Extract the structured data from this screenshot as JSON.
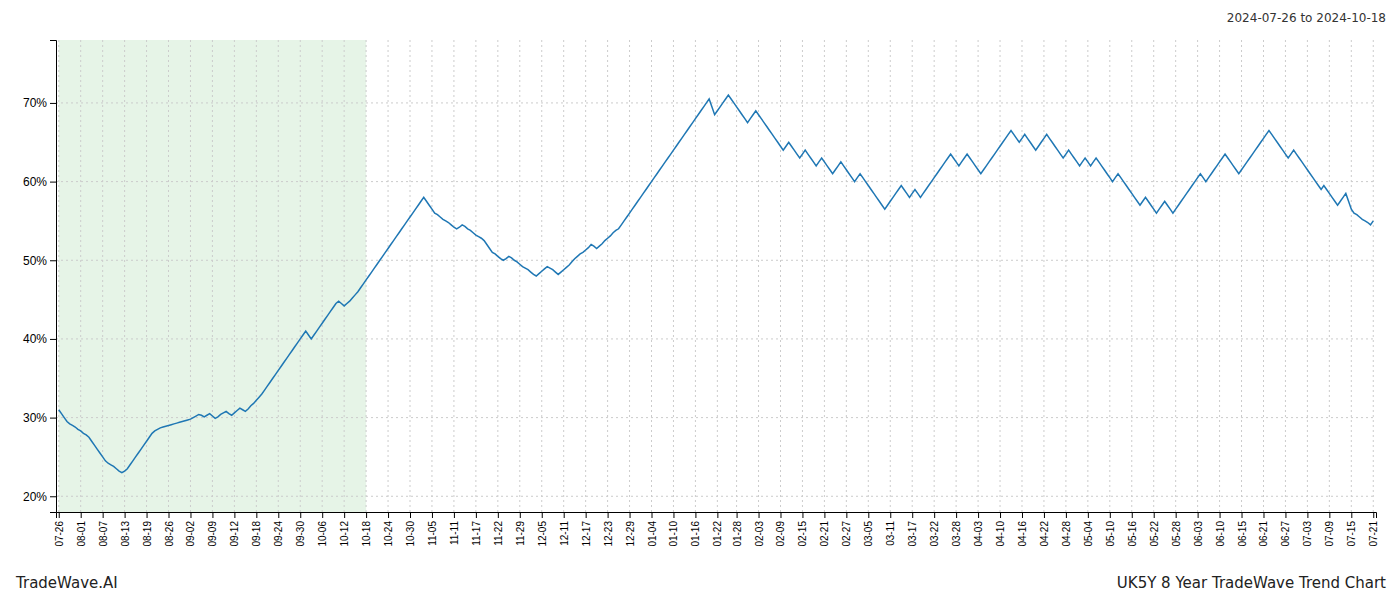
{
  "chart_data": {
    "type": "line",
    "annotations": [
      "2024-07-26 to 2024-10-18",
      "TradeWave.AI",
      "UK5Y 8 Year TradeWave Trend Chart"
    ],
    "categories": [
      "07-26",
      null,
      null,
      null,
      null,
      null,
      null,
      null,
      "08-01",
      null,
      null,
      null,
      null,
      null,
      null,
      null,
      "08-07",
      null,
      null,
      null,
      null,
      null,
      null,
      null,
      "08-13",
      null,
      null,
      null,
      null,
      null,
      null,
      null,
      "08-19",
      null,
      null,
      null,
      null,
      null,
      null,
      null,
      "08-26",
      null,
      null,
      null,
      null,
      null,
      null,
      null,
      "09-02",
      null,
      null,
      null,
      null,
      null,
      null,
      null,
      "09-09",
      null,
      null,
      null,
      null,
      null,
      null,
      null,
      "09-12",
      null,
      null,
      null,
      null,
      null,
      null,
      null,
      "09-18",
      null,
      null,
      null,
      null,
      null,
      null,
      null,
      "09-24",
      null,
      null,
      null,
      null,
      null,
      null,
      null,
      "09-30",
      null,
      null,
      null,
      null,
      null,
      null,
      null,
      "10-06",
      null,
      null,
      null,
      null,
      null,
      null,
      null,
      "10-12",
      null,
      null,
      null,
      null,
      null,
      null,
      null,
      "10-18",
      null,
      null,
      null,
      null,
      null,
      null,
      null,
      "10-24",
      null,
      null,
      null,
      null,
      null,
      null,
      null,
      "10-30",
      null,
      null,
      null,
      null,
      null,
      null,
      null,
      "11-05",
      null,
      null,
      null,
      null,
      null,
      null,
      null,
      "11-11",
      null,
      null,
      null,
      null,
      null,
      null,
      null,
      "11-17",
      null,
      null,
      null,
      null,
      null,
      null,
      null,
      "11-22",
      null,
      null,
      null,
      null,
      null,
      null,
      null,
      "11-29",
      null,
      null,
      null,
      null,
      null,
      null,
      null,
      "12-05",
      null,
      null,
      null,
      null,
      null,
      null,
      null,
      "12-11",
      null,
      null,
      null,
      null,
      null,
      null,
      null,
      "12-17",
      null,
      null,
      null,
      null,
      null,
      null,
      null,
      "12-23",
      null,
      null,
      null,
      null,
      null,
      null,
      null,
      "12-29",
      null,
      null,
      null,
      null,
      null,
      null,
      null,
      "01-04",
      null,
      null,
      null,
      null,
      null,
      null,
      null,
      "01-10",
      null,
      null,
      null,
      null,
      null,
      null,
      null,
      "01-16",
      null,
      null,
      null,
      null,
      null,
      null,
      null,
      "01-22",
      null,
      null,
      null,
      null,
      null,
      null,
      "01-28",
      null,
      null,
      null,
      null,
      null,
      null,
      null,
      "02-03",
      null,
      null,
      null,
      null,
      null,
      null,
      null,
      "02-09",
      null,
      null,
      null,
      null,
      null,
      null,
      null,
      "02-15",
      null,
      null,
      null,
      null,
      null,
      null,
      null,
      "02-21",
      null,
      null,
      null,
      null,
      null,
      null,
      null,
      "02-27",
      null,
      null,
      null,
      null,
      null,
      null,
      null,
      "03-05",
      null,
      null,
      null,
      null,
      null,
      null,
      null,
      "03-11",
      null,
      null,
      null,
      null,
      null,
      null,
      null,
      "03-17",
      null,
      null,
      null,
      null,
      null,
      null,
      null,
      "03-22",
      null,
      null,
      null,
      null,
      null,
      null,
      null,
      "03-28",
      null,
      null,
      null,
      null,
      null,
      null,
      null,
      "04-03",
      null,
      null,
      null,
      null,
      null,
      null,
      null,
      "04-10",
      null,
      null,
      null,
      null,
      null,
      null,
      null,
      "04-16",
      null,
      null,
      null,
      null,
      null,
      null,
      null,
      "04-22",
      null,
      null,
      null,
      null,
      null,
      null,
      null,
      "04-28",
      null,
      null,
      null,
      null,
      null,
      null,
      null,
      "05-04",
      null,
      null,
      null,
      null,
      null,
      null,
      null,
      "05-10",
      null,
      null,
      null,
      null,
      null,
      null,
      null,
      "05-16",
      null,
      null,
      null,
      null,
      null,
      null,
      null,
      "05-22",
      null,
      null,
      null,
      null,
      null,
      null,
      null,
      "05-28",
      null,
      null,
      null,
      null,
      null,
      null,
      null,
      "06-03",
      null,
      null,
      null,
      null,
      null,
      null,
      null,
      "06-10",
      null,
      null,
      null,
      null,
      null,
      null,
      null,
      "06-15",
      null,
      null,
      null,
      null,
      null,
      null,
      null,
      "06-21",
      null,
      null,
      null,
      null,
      null,
      null,
      null,
      "06-27",
      null,
      null,
      null,
      null,
      null,
      null,
      null,
      "07-03",
      null,
      null,
      null,
      null,
      null,
      null,
      null,
      "07-09",
      null,
      null,
      null,
      null,
      null,
      null,
      null,
      "07-15",
      null,
      null,
      null,
      null,
      null,
      null,
      null,
      "07-21"
    ],
    "values": [
      31.0,
      30.5,
      30.0,
      29.5,
      29.2,
      29.0,
      28.8,
      28.5,
      28.3,
      28.0,
      27.8,
      27.5,
      27.0,
      26.5,
      26.0,
      25.5,
      25.0,
      24.5,
      24.2,
      24.0,
      23.8,
      23.5,
      23.2,
      23.0,
      23.2,
      23.5,
      24.0,
      24.5,
      25.0,
      25.5,
      26.0,
      26.5,
      27.0,
      27.5,
      28.0,
      28.3,
      28.5,
      28.7,
      28.8,
      28.9,
      29.0,
      29.1,
      29.2,
      29.3,
      29.4,
      29.5,
      29.6,
      29.7,
      29.8,
      30.0,
      30.2,
      30.4,
      30.3,
      30.1,
      30.3,
      30.5,
      30.2,
      29.9,
      30.1,
      30.4,
      30.6,
      30.8,
      30.5,
      30.3,
      30.6,
      30.9,
      31.2,
      31.0,
      30.8,
      31.1,
      31.5,
      31.8,
      32.2,
      32.6,
      33.0,
      33.5,
      34.0,
      34.5,
      35.0,
      35.5,
      36.0,
      36.5,
      37.0,
      37.5,
      38.0,
      38.5,
      39.0,
      39.5,
      40.0,
      40.5,
      41.0,
      40.5,
      40.0,
      40.5,
      41.0,
      41.5,
      42.0,
      42.5,
      43.0,
      43.5,
      44.0,
      44.5,
      44.8,
      44.5,
      44.2,
      44.5,
      44.8,
      45.2,
      45.6,
      46.0,
      46.5,
      47.0,
      47.5,
      48.0,
      48.5,
      49.0,
      49.5,
      50.0,
      50.5,
      51.0,
      51.5,
      52.0,
      52.5,
      53.0,
      53.5,
      54.0,
      54.5,
      55.0,
      55.5,
      56.0,
      56.5,
      57.0,
      57.5,
      58.0,
      57.5,
      57.0,
      56.5,
      56.0,
      55.8,
      55.5,
      55.2,
      55.0,
      54.8,
      54.5,
      54.2,
      54.0,
      54.2,
      54.5,
      54.3,
      54.0,
      53.8,
      53.5,
      53.2,
      53.0,
      52.8,
      52.5,
      52.0,
      51.5,
      51.0,
      50.8,
      50.5,
      50.2,
      50.0,
      50.2,
      50.5,
      50.3,
      50.0,
      49.8,
      49.5,
      49.2,
      49.0,
      48.8,
      48.5,
      48.2,
      48.0,
      48.3,
      48.6,
      48.9,
      49.2,
      49.0,
      48.8,
      48.5,
      48.2,
      48.5,
      48.8,
      49.1,
      49.4,
      49.8,
      50.2,
      50.5,
      50.8,
      51.0,
      51.3,
      51.6,
      52.0,
      51.8,
      51.5,
      51.8,
      52.1,
      52.5,
      52.8,
      53.1,
      53.5,
      53.8,
      54.0,
      54.5,
      55.0,
      55.5,
      56.0,
      56.5,
      57.0,
      57.5,
      58.0,
      58.5,
      59.0,
      59.5,
      60.0,
      60.5,
      61.0,
      61.5,
      62.0,
      62.5,
      63.0,
      63.5,
      64.0,
      64.5,
      65.0,
      65.5,
      66.0,
      66.5,
      67.0,
      67.5,
      68.0,
      68.5,
      69.0,
      69.5,
      70.0,
      70.5,
      69.5,
      68.5,
      69.0,
      69.5,
      70.0,
      70.5,
      71.0,
      70.5,
      70.0,
      69.5,
      69.0,
      68.5,
      68.0,
      67.5,
      68.0,
      68.5,
      69.0,
      68.5,
      68.0,
      67.5,
      67.0,
      66.5,
      66.0,
      65.5,
      65.0,
      64.5,
      64.0,
      64.5,
      65.0,
      64.5,
      64.0,
      63.5,
      63.0,
      63.5,
      64.0,
      63.5,
      63.0,
      62.5,
      62.0,
      62.5,
      63.0,
      62.5,
      62.0,
      61.5,
      61.0,
      61.5,
      62.0,
      62.5,
      62.0,
      61.5,
      61.0,
      60.5,
      60.0,
      60.5,
      61.0,
      60.5,
      60.0,
      59.5,
      59.0,
      58.5,
      58.0,
      57.5,
      57.0,
      56.5,
      57.0,
      57.5,
      58.0,
      58.5,
      59.0,
      59.5,
      59.0,
      58.5,
      58.0,
      58.5,
      59.0,
      58.5,
      58.0,
      58.5,
      59.0,
      59.5,
      60.0,
      60.5,
      61.0,
      61.5,
      62.0,
      62.5,
      63.0,
      63.5,
      63.0,
      62.5,
      62.0,
      62.5,
      63.0,
      63.5,
      63.0,
      62.5,
      62.0,
      61.5,
      61.0,
      61.5,
      62.0,
      62.5,
      63.0,
      63.5,
      64.0,
      64.5,
      65.0,
      65.5,
      66.0,
      66.5,
      66.0,
      65.5,
      65.0,
      65.5,
      66.0,
      65.5,
      65.0,
      64.5,
      64.0,
      64.5,
      65.0,
      65.5,
      66.0,
      65.5,
      65.0,
      64.5,
      64.0,
      63.5,
      63.0,
      63.5,
      64.0,
      63.5,
      63.0,
      62.5,
      62.0,
      62.5,
      63.0,
      62.5,
      62.0,
      62.5,
      63.0,
      62.5,
      62.0,
      61.5,
      61.0,
      60.5,
      60.0,
      60.5,
      61.0,
      60.5,
      60.0,
      59.5,
      59.0,
      58.5,
      58.0,
      57.5,
      57.0,
      57.5,
      58.0,
      57.5,
      57.0,
      56.5,
      56.0,
      56.5,
      57.0,
      57.5,
      57.0,
      56.5,
      56.0,
      56.5,
      57.0,
      57.5,
      58.0,
      58.5,
      59.0,
      59.5,
      60.0,
      60.5,
      61.0,
      60.5,
      60.0,
      60.5,
      61.0,
      61.5,
      62.0,
      62.5,
      63.0,
      63.5,
      63.0,
      62.5,
      62.0,
      61.5,
      61.0,
      61.5,
      62.0,
      62.5,
      63.0,
      63.5,
      64.0,
      64.5,
      65.0,
      65.5,
      66.0,
      66.5,
      66.0,
      65.5,
      65.0,
      64.5,
      64.0,
      63.5,
      63.0,
      63.5,
      64.0,
      63.5,
      63.0,
      62.5,
      62.0,
      61.5,
      61.0,
      60.5,
      60.0,
      59.5,
      59.0,
      59.5,
      59.0,
      58.5,
      58.0,
      57.5,
      57.0,
      57.5,
      58.0,
      58.5,
      57.5,
      56.5,
      56.0,
      55.8,
      55.5,
      55.2,
      55.0,
      54.8,
      54.5,
      55.0
    ],
    "shade": {
      "from": "07-26",
      "to": "10-18",
      "color": "#c8e6c9"
    },
    "ylim": [
      18,
      78
    ],
    "yticks": [
      {
        "value": 20,
        "label": "20%"
      },
      {
        "value": 30,
        "label": "30%"
      },
      {
        "value": 40,
        "label": "40%"
      },
      {
        "value": 50,
        "label": "50%"
      },
      {
        "value": 60,
        "label": "60%"
      },
      {
        "value": 70,
        "label": "70%"
      }
    ],
    "grid": true
  }
}
